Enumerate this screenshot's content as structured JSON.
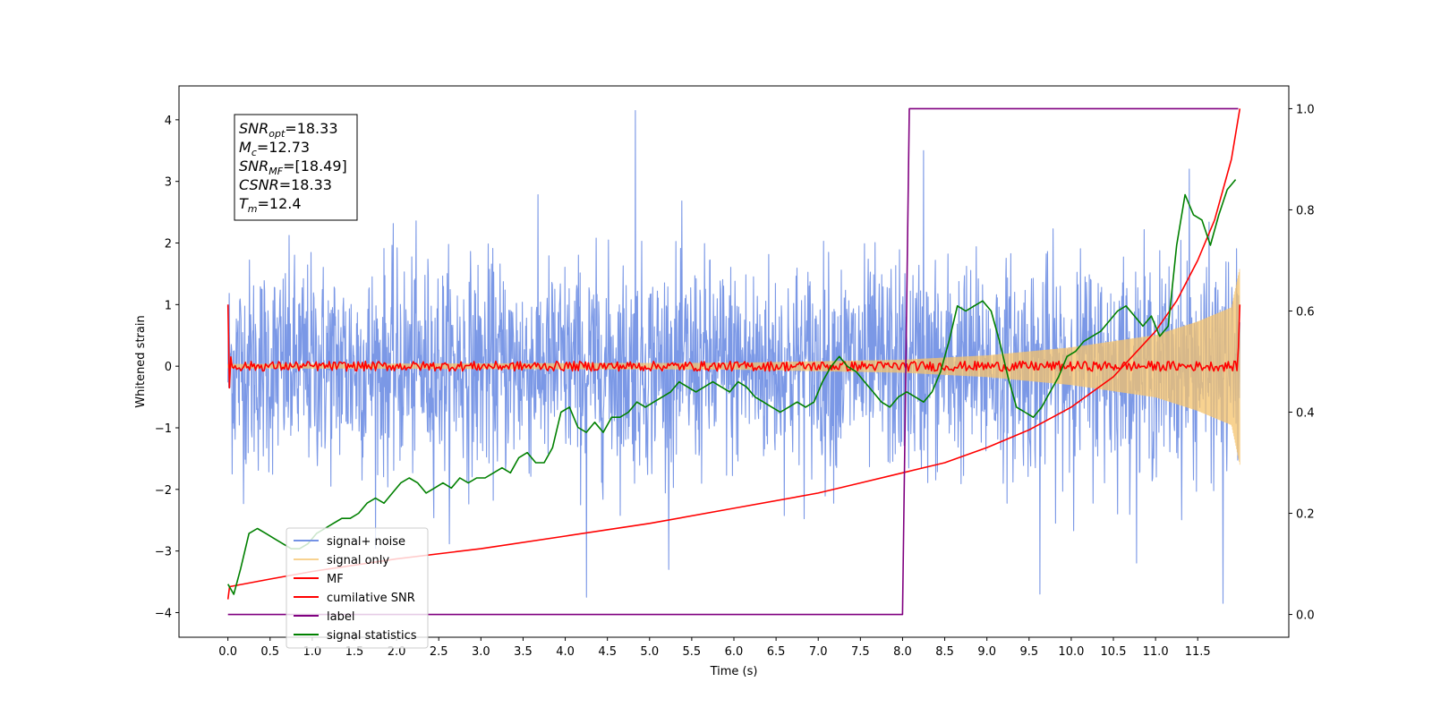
{
  "chart_data": {
    "type": "line",
    "xlabel": "Time (s)",
    "ylabel": "Whitened strain",
    "xlim": [
      -0.58,
      12.58
    ],
    "ylim": [
      -4.4,
      4.55
    ],
    "y2lim": [
      -0.045,
      1.045
    ],
    "x_ticks": [
      0.0,
      0.5,
      1.0,
      1.5,
      2.0,
      2.5,
      3.0,
      3.5,
      4.0,
      4.5,
      5.0,
      5.5,
      6.0,
      6.5,
      7.0,
      7.5,
      8.0,
      8.5,
      9.0,
      9.5,
      10.0,
      10.5,
      11.0,
      11.5
    ],
    "x_tick_labels": [
      "0.0",
      "0.5",
      "1.0",
      "1.5",
      "2.0",
      "2.5",
      "3.0",
      "3.5",
      "4.0",
      "4.5",
      "5.0",
      "5.5",
      "6.0",
      "6.5",
      "7.0",
      "7.5",
      "8.0",
      "8.5",
      "9.0",
      "9.5",
      "10.0",
      "10.5",
      "11.0",
      "11.5"
    ],
    "y_ticks": [
      -4,
      -3,
      -2,
      -1,
      0,
      1,
      2,
      3,
      4
    ],
    "y_tick_labels": [
      "−4",
      "−3",
      "−2",
      "−1",
      "0",
      "1",
      "2",
      "3",
      "4"
    ],
    "y2_ticks": [
      0.0,
      0.2,
      0.4,
      0.6,
      0.8,
      1.0
    ],
    "y2_tick_labels": [
      "0.0",
      "0.2",
      "0.4",
      "0.6",
      "0.8",
      "1.0"
    ],
    "legend_position": "lower-left",
    "grid": false,
    "info_box": [
      {
        "label": "SNR",
        "sub": "opt",
        "value": "=18.33"
      },
      {
        "label": "M",
        "sub": "c",
        "value": "=12.73"
      },
      {
        "label": "SNR",
        "sub": "MF",
        "value": "=[18.49]"
      },
      {
        "label": "CSNR",
        "sub": "",
        "value": "=18.33"
      },
      {
        "label": "T",
        "sub": "m",
        "value": "=12.4"
      }
    ],
    "series": [
      {
        "name": "signal+ noise",
        "color": "#7492e5",
        "axis": "left",
        "kind": "noise",
        "x_range": [
          0.0,
          12.0
        ],
        "approx_std": 0.85,
        "spikes": [
          {
            "x": 4.83,
            "y": 4.15
          },
          {
            "x": 4.25,
            "y": -3.75
          },
          {
            "x": 11.8,
            "y": -3.85
          },
          {
            "x": 8.25,
            "y": 3.5
          },
          {
            "x": 9.63,
            "y": -3.7
          },
          {
            "x": 11.4,
            "y": 3.2
          }
        ]
      },
      {
        "name": "signal only",
        "color": "#f5c36b",
        "axis": "left",
        "kind": "chirp",
        "x_range": [
          0.0,
          12.0
        ],
        "amplitude_points": [
          [
            0.0,
            0.03
          ],
          [
            6.0,
            0.05
          ],
          [
            8.0,
            0.1
          ],
          [
            9.0,
            0.17
          ],
          [
            10.0,
            0.3
          ],
          [
            11.0,
            0.5
          ],
          [
            11.5,
            0.72
          ],
          [
            11.9,
            0.95
          ],
          [
            12.0,
            1.6
          ]
        ]
      },
      {
        "name": "MF",
        "color": "#ff0000",
        "axis": "left",
        "kind": "flat-noise",
        "x_range": [
          0.0,
          12.0
        ],
        "start_value": 1.0,
        "end_value": 1.0,
        "approx_std": 0.04
      },
      {
        "name": "cumilative SNR",
        "color": "#ff0000",
        "axis": "right",
        "x": [
          0.0,
          0.02,
          0.5,
          1.0,
          2.0,
          3.0,
          4.0,
          5.0,
          6.0,
          7.0,
          7.5,
          8.0,
          8.5,
          9.0,
          9.5,
          10.0,
          10.5,
          11.0,
          11.25,
          11.5,
          11.7,
          11.9,
          12.0
        ],
        "y": [
          0.03,
          0.055,
          0.07,
          0.085,
          0.11,
          0.13,
          0.155,
          0.18,
          0.21,
          0.24,
          0.26,
          0.28,
          0.3,
          0.33,
          0.365,
          0.41,
          0.47,
          0.56,
          0.62,
          0.7,
          0.78,
          0.9,
          1.0
        ]
      },
      {
        "name": "label",
        "color": "#800080",
        "axis": "right",
        "x": [
          0.0,
          8.0,
          8.08,
          11.98
        ],
        "y": [
          0.0,
          0.0,
          1.0,
          1.0
        ]
      },
      {
        "name": "signal statistics",
        "color": "#008000",
        "axis": "right",
        "x": [
          0.0,
          0.07,
          0.15,
          0.25,
          0.35,
          0.45,
          0.55,
          0.65,
          0.75,
          0.85,
          0.95,
          1.05,
          1.15,
          1.25,
          1.35,
          1.45,
          1.55,
          1.65,
          1.75,
          1.85,
          1.95,
          2.05,
          2.15,
          2.25,
          2.35,
          2.45,
          2.55,
          2.65,
          2.75,
          2.85,
          2.95,
          3.05,
          3.15,
          3.25,
          3.35,
          3.45,
          3.55,
          3.65,
          3.75,
          3.85,
          3.95,
          4.05,
          4.15,
          4.25,
          4.35,
          4.45,
          4.55,
          4.65,
          4.75,
          4.85,
          4.95,
          5.05,
          5.15,
          5.25,
          5.35,
          5.45,
          5.55,
          5.65,
          5.75,
          5.85,
          5.95,
          6.05,
          6.15,
          6.25,
          6.35,
          6.45,
          6.55,
          6.65,
          6.75,
          6.85,
          6.95,
          7.05,
          7.15,
          7.25,
          7.35,
          7.45,
          7.55,
          7.65,
          7.75,
          7.85,
          7.95,
          8.05,
          8.15,
          8.25,
          8.35,
          8.45,
          8.55,
          8.65,
          8.75,
          8.85,
          8.95,
          9.05,
          9.15,
          9.25,
          9.35,
          9.45,
          9.55,
          9.65,
          9.75,
          9.85,
          9.95,
          10.05,
          10.15,
          10.25,
          10.35,
          10.45,
          10.55,
          10.65,
          10.75,
          10.85,
          10.95,
          11.05,
          11.15,
          11.25,
          11.35,
          11.45,
          11.55,
          11.65,
          11.75,
          11.85,
          11.95
        ],
        "y": [
          0.06,
          0.04,
          0.09,
          0.16,
          0.17,
          0.16,
          0.15,
          0.14,
          0.13,
          0.13,
          0.14,
          0.16,
          0.17,
          0.18,
          0.19,
          0.19,
          0.2,
          0.22,
          0.23,
          0.22,
          0.24,
          0.26,
          0.27,
          0.26,
          0.24,
          0.25,
          0.26,
          0.25,
          0.27,
          0.26,
          0.27,
          0.27,
          0.28,
          0.29,
          0.28,
          0.31,
          0.32,
          0.3,
          0.3,
          0.33,
          0.4,
          0.41,
          0.37,
          0.36,
          0.38,
          0.36,
          0.39,
          0.39,
          0.4,
          0.42,
          0.41,
          0.42,
          0.43,
          0.44,
          0.46,
          0.45,
          0.44,
          0.45,
          0.46,
          0.45,
          0.44,
          0.46,
          0.45,
          0.43,
          0.42,
          0.41,
          0.4,
          0.41,
          0.42,
          0.41,
          0.42,
          0.46,
          0.49,
          0.51,
          0.49,
          0.48,
          0.46,
          0.44,
          0.42,
          0.41,
          0.43,
          0.44,
          0.43,
          0.42,
          0.44,
          0.48,
          0.54,
          0.61,
          0.6,
          0.61,
          0.62,
          0.6,
          0.54,
          0.47,
          0.41,
          0.4,
          0.39,
          0.41,
          0.44,
          0.47,
          0.51,
          0.52,
          0.54,
          0.55,
          0.56,
          0.58,
          0.6,
          0.61,
          0.59,
          0.57,
          0.59,
          0.55,
          0.57,
          0.73,
          0.83,
          0.79,
          0.78,
          0.73,
          0.79,
          0.84,
          0.86
        ]
      }
    ]
  }
}
